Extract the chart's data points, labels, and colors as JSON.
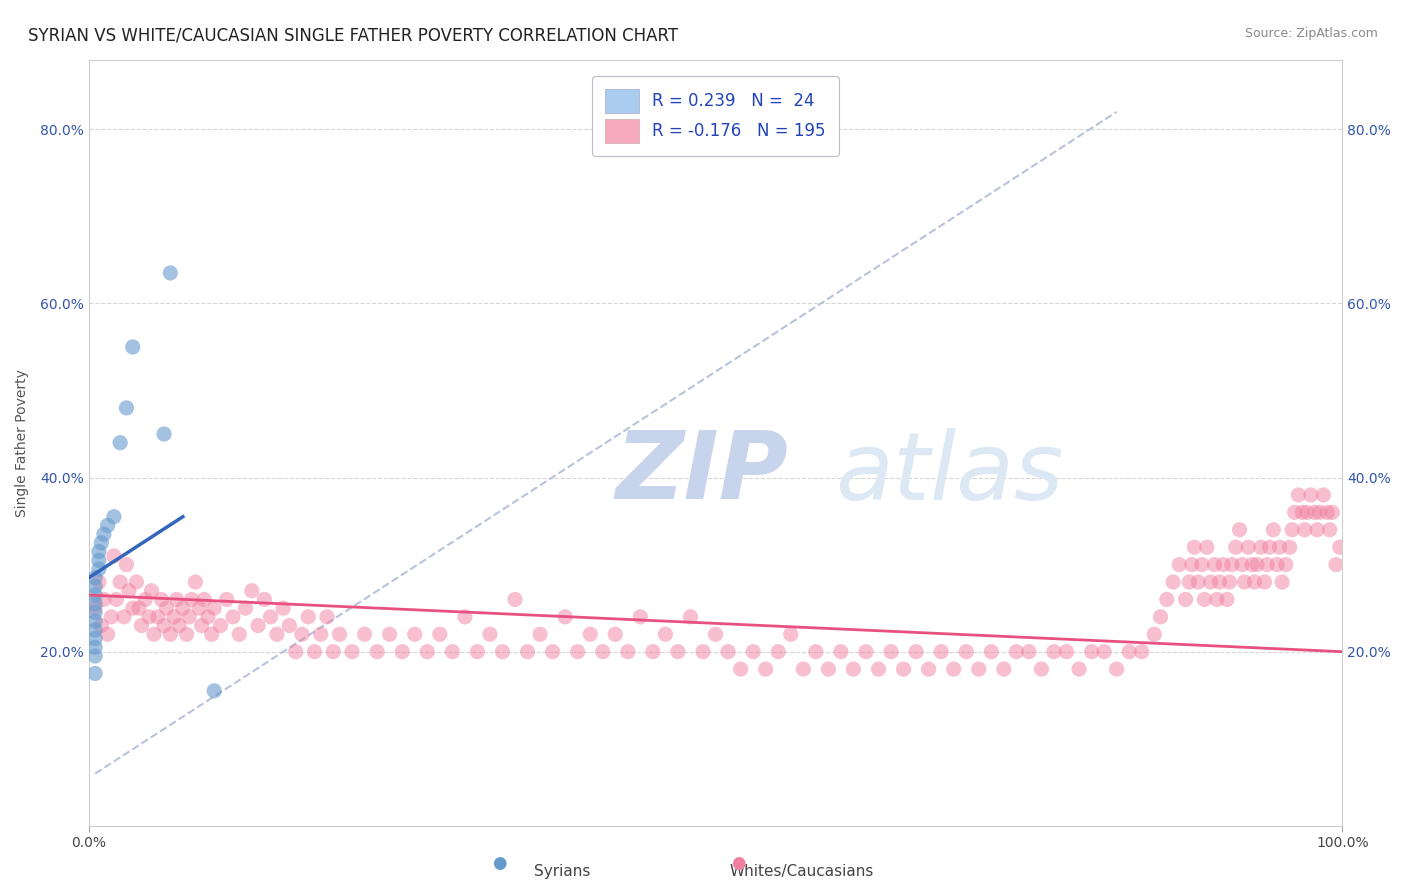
{
  "title": "SYRIAN VS WHITE/CAUCASIAN SINGLE FATHER POVERTY CORRELATION CHART",
  "source": "Source: ZipAtlas.com",
  "ylabel": "Single Father Poverty",
  "xlim": [
    0.0,
    1.0
  ],
  "ylim": [
    0.0,
    0.88
  ],
  "x_tick_labels": [
    "0.0%",
    "100.0%"
  ],
  "x_tick_vals": [
    0.0,
    1.0
  ],
  "y_tick_labels": [
    "20.0%",
    "40.0%",
    "60.0%",
    "80.0%"
  ],
  "y_tick_vals": [
    0.2,
    0.4,
    0.6,
    0.8
  ],
  "watermark_zip": "ZIP",
  "watermark_atlas": "atlas",
  "watermark_color": "#d0dcee",
  "syrian_color": "#6699cc",
  "white_color": "#f080a0",
  "syrian_line_color": "#3366bb",
  "white_line_color": "#e85080",
  "diag_color": "#b0bcd8",
  "grid_color": "#cccccc",
  "bg_color": "#ffffff",
  "title_fontsize": 12,
  "source_fontsize": 9,
  "axis_label_fontsize": 10,
  "tick_fontsize": 10,
  "legend_fontsize": 12,
  "legend_R1": "R = 0.239",
  "legend_N1": "N =  24",
  "legend_R2": "R = -0.176",
  "legend_N2": "N = 195",
  "legend_color1": "#aaccee",
  "legend_color2": "#f4aabb",
  "legend_text_color": "#2244bb",
  "bottom_label1": "Syrians",
  "bottom_label2": "Whites/Caucasians",
  "syrian_scatter": [
    [
      0.005,
      0.175
    ],
    [
      0.005,
      0.195
    ],
    [
      0.005,
      0.205
    ],
    [
      0.005,
      0.215
    ],
    [
      0.005,
      0.225
    ],
    [
      0.005,
      0.235
    ],
    [
      0.005,
      0.245
    ],
    [
      0.005,
      0.255
    ],
    [
      0.005,
      0.265
    ],
    [
      0.005,
      0.275
    ],
    [
      0.005,
      0.285
    ],
    [
      0.008,
      0.295
    ],
    [
      0.008,
      0.305
    ],
    [
      0.008,
      0.315
    ],
    [
      0.01,
      0.325
    ],
    [
      0.012,
      0.335
    ],
    [
      0.015,
      0.345
    ],
    [
      0.02,
      0.355
    ],
    [
      0.025,
      0.44
    ],
    [
      0.03,
      0.48
    ],
    [
      0.035,
      0.55
    ],
    [
      0.06,
      0.45
    ],
    [
      0.065,
      0.635
    ],
    [
      0.1,
      0.155
    ]
  ],
  "white_scatter_low": [
    [
      0.005,
      0.25
    ],
    [
      0.008,
      0.28
    ],
    [
      0.01,
      0.23
    ],
    [
      0.012,
      0.26
    ],
    [
      0.015,
      0.22
    ],
    [
      0.018,
      0.24
    ],
    [
      0.02,
      0.31
    ],
    [
      0.022,
      0.26
    ],
    [
      0.025,
      0.28
    ],
    [
      0.028,
      0.24
    ],
    [
      0.03,
      0.3
    ],
    [
      0.032,
      0.27
    ],
    [
      0.035,
      0.25
    ],
    [
      0.038,
      0.28
    ],
    [
      0.04,
      0.25
    ],
    [
      0.042,
      0.23
    ],
    [
      0.045,
      0.26
    ],
    [
      0.048,
      0.24
    ],
    [
      0.05,
      0.27
    ],
    [
      0.052,
      0.22
    ],
    [
      0.055,
      0.24
    ],
    [
      0.058,
      0.26
    ],
    [
      0.06,
      0.23
    ],
    [
      0.062,
      0.25
    ],
    [
      0.065,
      0.22
    ],
    [
      0.068,
      0.24
    ],
    [
      0.07,
      0.26
    ],
    [
      0.072,
      0.23
    ],
    [
      0.075,
      0.25
    ],
    [
      0.078,
      0.22
    ],
    [
      0.08,
      0.24
    ],
    [
      0.082,
      0.26
    ],
    [
      0.085,
      0.28
    ],
    [
      0.088,
      0.25
    ],
    [
      0.09,
      0.23
    ],
    [
      0.092,
      0.26
    ],
    [
      0.095,
      0.24
    ],
    [
      0.098,
      0.22
    ],
    [
      0.1,
      0.25
    ],
    [
      0.105,
      0.23
    ],
    [
      0.11,
      0.26
    ],
    [
      0.115,
      0.24
    ],
    [
      0.12,
      0.22
    ],
    [
      0.125,
      0.25
    ],
    [
      0.13,
      0.27
    ],
    [
      0.135,
      0.23
    ],
    [
      0.14,
      0.26
    ],
    [
      0.145,
      0.24
    ],
    [
      0.15,
      0.22
    ],
    [
      0.155,
      0.25
    ],
    [
      0.16,
      0.23
    ],
    [
      0.165,
      0.2
    ],
    [
      0.17,
      0.22
    ],
    [
      0.175,
      0.24
    ],
    [
      0.18,
      0.2
    ],
    [
      0.185,
      0.22
    ],
    [
      0.19,
      0.24
    ],
    [
      0.195,
      0.2
    ],
    [
      0.2,
      0.22
    ],
    [
      0.21,
      0.2
    ],
    [
      0.22,
      0.22
    ],
    [
      0.23,
      0.2
    ],
    [
      0.24,
      0.22
    ],
    [
      0.25,
      0.2
    ],
    [
      0.26,
      0.22
    ],
    [
      0.27,
      0.2
    ],
    [
      0.28,
      0.22
    ],
    [
      0.29,
      0.2
    ],
    [
      0.3,
      0.24
    ],
    [
      0.31,
      0.2
    ],
    [
      0.32,
      0.22
    ],
    [
      0.33,
      0.2
    ],
    [
      0.34,
      0.26
    ],
    [
      0.35,
      0.2
    ],
    [
      0.36,
      0.22
    ],
    [
      0.37,
      0.2
    ],
    [
      0.38,
      0.24
    ],
    [
      0.39,
      0.2
    ],
    [
      0.4,
      0.22
    ],
    [
      0.41,
      0.2
    ],
    [
      0.42,
      0.22
    ],
    [
      0.43,
      0.2
    ],
    [
      0.44,
      0.24
    ],
    [
      0.45,
      0.2
    ],
    [
      0.46,
      0.22
    ],
    [
      0.47,
      0.2
    ],
    [
      0.48,
      0.24
    ],
    [
      0.49,
      0.2
    ],
    [
      0.5,
      0.22
    ],
    [
      0.51,
      0.2
    ],
    [
      0.52,
      0.18
    ],
    [
      0.53,
      0.2
    ],
    [
      0.54,
      0.18
    ],
    [
      0.55,
      0.2
    ],
    [
      0.56,
      0.22
    ],
    [
      0.57,
      0.18
    ],
    [
      0.58,
      0.2
    ],
    [
      0.59,
      0.18
    ],
    [
      0.6,
      0.2
    ],
    [
      0.61,
      0.18
    ],
    [
      0.62,
      0.2
    ],
    [
      0.63,
      0.18
    ],
    [
      0.64,
      0.2
    ],
    [
      0.65,
      0.18
    ],
    [
      0.66,
      0.2
    ],
    [
      0.67,
      0.18
    ],
    [
      0.68,
      0.2
    ],
    [
      0.69,
      0.18
    ],
    [
      0.7,
      0.2
    ],
    [
      0.71,
      0.18
    ],
    [
      0.72,
      0.2
    ],
    [
      0.73,
      0.18
    ],
    [
      0.74,
      0.2
    ],
    [
      0.75,
      0.2
    ],
    [
      0.76,
      0.18
    ],
    [
      0.77,
      0.2
    ],
    [
      0.78,
      0.2
    ],
    [
      0.79,
      0.18
    ],
    [
      0.8,
      0.2
    ],
    [
      0.81,
      0.2
    ],
    [
      0.82,
      0.18
    ],
    [
      0.83,
      0.2
    ],
    [
      0.84,
      0.2
    ],
    [
      0.85,
      0.22
    ],
    [
      0.855,
      0.24
    ],
    [
      0.86,
      0.26
    ],
    [
      0.865,
      0.28
    ],
    [
      0.87,
      0.3
    ],
    [
      0.875,
      0.26
    ],
    [
      0.878,
      0.28
    ],
    [
      0.88,
      0.3
    ],
    [
      0.882,
      0.32
    ],
    [
      0.885,
      0.28
    ],
    [
      0.888,
      0.3
    ],
    [
      0.89,
      0.26
    ],
    [
      0.892,
      0.32
    ],
    [
      0.895,
      0.28
    ],
    [
      0.898,
      0.3
    ],
    [
      0.9,
      0.26
    ],
    [
      0.902,
      0.28
    ],
    [
      0.905,
      0.3
    ],
    [
      0.908,
      0.26
    ],
    [
      0.91,
      0.28
    ],
    [
      0.912,
      0.3
    ],
    [
      0.915,
      0.32
    ],
    [
      0.918,
      0.34
    ],
    [
      0.92,
      0.3
    ],
    [
      0.922,
      0.28
    ],
    [
      0.925,
      0.32
    ],
    [
      0.928,
      0.3
    ],
    [
      0.93,
      0.28
    ],
    [
      0.932,
      0.3
    ],
    [
      0.935,
      0.32
    ],
    [
      0.938,
      0.28
    ],
    [
      0.94,
      0.3
    ],
    [
      0.942,
      0.32
    ],
    [
      0.945,
      0.34
    ],
    [
      0.948,
      0.3
    ],
    [
      0.95,
      0.32
    ],
    [
      0.952,
      0.28
    ],
    [
      0.955,
      0.3
    ],
    [
      0.958,
      0.32
    ],
    [
      0.96,
      0.34
    ],
    [
      0.962,
      0.36
    ],
    [
      0.965,
      0.38
    ],
    [
      0.968,
      0.36
    ],
    [
      0.97,
      0.34
    ],
    [
      0.972,
      0.36
    ],
    [
      0.975,
      0.38
    ],
    [
      0.978,
      0.36
    ],
    [
      0.98,
      0.34
    ],
    [
      0.982,
      0.36
    ],
    [
      0.985,
      0.38
    ],
    [
      0.988,
      0.36
    ],
    [
      0.99,
      0.34
    ],
    [
      0.992,
      0.36
    ],
    [
      0.995,
      0.3
    ],
    [
      0.998,
      0.32
    ]
  ],
  "syrian_line": [
    [
      0.0,
      0.285
    ],
    [
      0.075,
      0.355
    ]
  ],
  "white_line": [
    [
      0.0,
      0.265
    ],
    [
      1.0,
      0.2
    ]
  ],
  "diag_line": [
    [
      0.005,
      0.06
    ],
    [
      0.82,
      0.82
    ]
  ]
}
